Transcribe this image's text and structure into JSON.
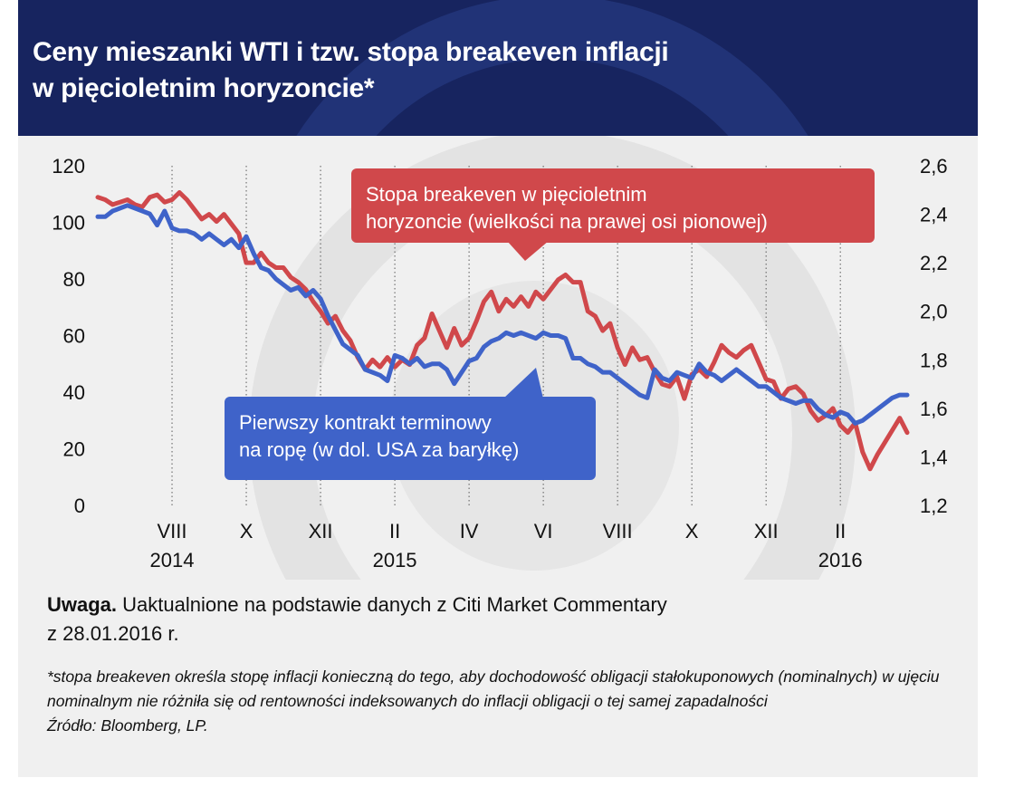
{
  "title_line1": "Ceny mieszanki WTI i tzw. stopa breakeven inflacji",
  "title_line2": "w pięcioletnim horyzoncie*",
  "note_label": "Uwaga.",
  "note_text": "Uaktualnione na podstawie danych z Citi Market Commentary",
  "note_text_2": "z 28.01.2016 r.",
  "footnote": "*stopa breakeven określa stopę inflacji konieczną do tego, aby dochodowość obligacji stałokuponowych (nominalnych) w ujęciu nominalnym nie różniła się od rentowności indeksowanych do inflacji obligacji o tej samej zapadalności",
  "source": "Źródło: Bloomberg, LP.",
  "colors": {
    "header": "#17245f",
    "oil": "#3f63c9",
    "breakeven": "#d0484b",
    "background": "#f0f0f0"
  },
  "chart_data": {
    "type": "line",
    "x_unit": "months since January 2014",
    "x_range": [
      5.0,
      25.8
    ],
    "x_ticks": [
      {
        "x": 7,
        "label": "VIII",
        "year": "2014"
      },
      {
        "x": 9,
        "label": "X",
        "year": ""
      },
      {
        "x": 11,
        "label": "XII",
        "year": ""
      },
      {
        "x": 13,
        "label": "II",
        "year": "2015"
      },
      {
        "x": 15,
        "label": "IV",
        "year": ""
      },
      {
        "x": 17,
        "label": "VI",
        "year": ""
      },
      {
        "x": 19,
        "label": "VIII",
        "year": ""
      },
      {
        "x": 21,
        "label": "X",
        "year": ""
      },
      {
        "x": 23,
        "label": "XII",
        "year": ""
      },
      {
        "x": 25,
        "label": "II",
        "year": "2016"
      }
    ],
    "y_left": {
      "min": 0,
      "max": 120,
      "ticks": [
        "0",
        "20",
        "40",
        "60",
        "80",
        "100",
        "120"
      ]
    },
    "y_right": {
      "min": 1.2,
      "max": 2.6,
      "ticks": [
        "1,2",
        "1,4",
        "1,6",
        "1,8",
        "2,0",
        "2,2",
        "2,4",
        "2,6"
      ]
    },
    "grid": "vertical",
    "series": [
      {
        "name": "Pierwszy kontrakt terminowy na ropę (w dol. USA za baryłkę)",
        "axis": "left",
        "points": [
          [
            5.0,
            102
          ],
          [
            5.2,
            102
          ],
          [
            5.4,
            104
          ],
          [
            5.6,
            105
          ],
          [
            5.8,
            106
          ],
          [
            6.0,
            105
          ],
          [
            6.2,
            104
          ],
          [
            6.4,
            103
          ],
          [
            6.6,
            99
          ],
          [
            6.8,
            104
          ],
          [
            7.0,
            98
          ],
          [
            7.2,
            97
          ],
          [
            7.4,
            97
          ],
          [
            7.6,
            96
          ],
          [
            7.8,
            94
          ],
          [
            8.0,
            96
          ],
          [
            8.2,
            94
          ],
          [
            8.4,
            92
          ],
          [
            8.6,
            94
          ],
          [
            8.8,
            91
          ],
          [
            9.0,
            95
          ],
          [
            9.2,
            89
          ],
          [
            9.4,
            84
          ],
          [
            9.6,
            83
          ],
          [
            9.8,
            80
          ],
          [
            10.0,
            78
          ],
          [
            10.2,
            76
          ],
          [
            10.4,
            77
          ],
          [
            10.6,
            74
          ],
          [
            10.8,
            76
          ],
          [
            11.0,
            73
          ],
          [
            11.2,
            67
          ],
          [
            11.4,
            62
          ],
          [
            11.6,
            57
          ],
          [
            11.8,
            55
          ],
          [
            12.0,
            53
          ],
          [
            12.2,
            48
          ],
          [
            12.4,
            47
          ],
          [
            12.6,
            46
          ],
          [
            12.8,
            44
          ],
          [
            13.0,
            53
          ],
          [
            13.2,
            52
          ],
          [
            13.4,
            50
          ],
          [
            13.6,
            52
          ],
          [
            13.8,
            49
          ],
          [
            14.0,
            50
          ],
          [
            14.2,
            50
          ],
          [
            14.4,
            48
          ],
          [
            14.6,
            43
          ],
          [
            14.8,
            47
          ],
          [
            15.0,
            51
          ],
          [
            15.2,
            52
          ],
          [
            15.4,
            56
          ],
          [
            15.6,
            58
          ],
          [
            15.8,
            59
          ],
          [
            16.0,
            61
          ],
          [
            16.2,
            60
          ],
          [
            16.4,
            61
          ],
          [
            16.6,
            60
          ],
          [
            16.8,
            59
          ],
          [
            17.0,
            61
          ],
          [
            17.2,
            60
          ],
          [
            17.4,
            60
          ],
          [
            17.6,
            59
          ],
          [
            17.8,
            52
          ],
          [
            18.0,
            52
          ],
          [
            18.2,
            50
          ],
          [
            18.4,
            49
          ],
          [
            18.6,
            47
          ],
          [
            18.8,
            47
          ],
          [
            19.0,
            45
          ],
          [
            19.2,
            43
          ],
          [
            19.4,
            41
          ],
          [
            19.6,
            39
          ],
          [
            19.8,
            38
          ],
          [
            20.0,
            48
          ],
          [
            20.2,
            45
          ],
          [
            20.4,
            44
          ],
          [
            20.6,
            47
          ],
          [
            20.8,
            46
          ],
          [
            21.0,
            45
          ],
          [
            21.2,
            50
          ],
          [
            21.4,
            47
          ],
          [
            21.6,
            46
          ],
          [
            21.8,
            44
          ],
          [
            22.0,
            46
          ],
          [
            22.2,
            48
          ],
          [
            22.4,
            46
          ],
          [
            22.6,
            44
          ],
          [
            22.8,
            42
          ],
          [
            23.0,
            42
          ],
          [
            23.2,
            40
          ],
          [
            23.4,
            38
          ],
          [
            23.6,
            37
          ],
          [
            23.8,
            36
          ],
          [
            24.0,
            37
          ],
          [
            24.2,
            37
          ],
          [
            24.4,
            34
          ],
          [
            24.6,
            32
          ],
          [
            24.8,
            31
          ],
          [
            25.0,
            33
          ],
          [
            25.2,
            32
          ],
          [
            25.4,
            29
          ],
          [
            25.6,
            30
          ],
          [
            25.8,
            32
          ],
          [
            26.0,
            34
          ],
          [
            26.2,
            36
          ],
          [
            26.4,
            38
          ],
          [
            26.6,
            39
          ],
          [
            26.8,
            39
          ]
        ]
      },
      {
        "name": "Stopa breakeven w pięcioletnim horyzoncie (wielkości na prawej osi pionowej)",
        "axis": "right",
        "points": [
          [
            5.0,
            2.47
          ],
          [
            5.2,
            2.46
          ],
          [
            5.4,
            2.44
          ],
          [
            5.6,
            2.45
          ],
          [
            5.8,
            2.46
          ],
          [
            6.0,
            2.44
          ],
          [
            6.2,
            2.43
          ],
          [
            6.4,
            2.47
          ],
          [
            6.6,
            2.48
          ],
          [
            6.8,
            2.45
          ],
          [
            7.0,
            2.46
          ],
          [
            7.2,
            2.49
          ],
          [
            7.4,
            2.46
          ],
          [
            7.6,
            2.42
          ],
          [
            7.8,
            2.38
          ],
          [
            8.0,
            2.4
          ],
          [
            8.2,
            2.37
          ],
          [
            8.4,
            2.4
          ],
          [
            8.6,
            2.36
          ],
          [
            8.8,
            2.32
          ],
          [
            9.0,
            2.2
          ],
          [
            9.2,
            2.2
          ],
          [
            9.4,
            2.24
          ],
          [
            9.6,
            2.2
          ],
          [
            9.8,
            2.18
          ],
          [
            10.0,
            2.18
          ],
          [
            10.2,
            2.14
          ],
          [
            10.4,
            2.12
          ],
          [
            10.6,
            2.09
          ],
          [
            10.8,
            2.04
          ],
          [
            11.0,
            2.0
          ],
          [
            11.2,
            1.95
          ],
          [
            11.4,
            1.98
          ],
          [
            11.6,
            1.92
          ],
          [
            11.8,
            1.88
          ],
          [
            12.0,
            1.81
          ],
          [
            12.2,
            1.76
          ],
          [
            12.4,
            1.8
          ],
          [
            12.6,
            1.77
          ],
          [
            12.8,
            1.81
          ],
          [
            13.0,
            1.77
          ],
          [
            13.2,
            1.8
          ],
          [
            13.4,
            1.78
          ],
          [
            13.6,
            1.86
          ],
          [
            13.8,
            1.89
          ],
          [
            14.0,
            1.99
          ],
          [
            14.2,
            1.92
          ],
          [
            14.4,
            1.85
          ],
          [
            14.6,
            1.93
          ],
          [
            14.8,
            1.86
          ],
          [
            15.0,
            1.89
          ],
          [
            15.2,
            1.96
          ],
          [
            15.4,
            2.04
          ],
          [
            15.6,
            2.08
          ],
          [
            15.8,
            2.0
          ],
          [
            16.0,
            2.05
          ],
          [
            16.2,
            2.02
          ],
          [
            16.4,
            2.06
          ],
          [
            16.6,
            2.02
          ],
          [
            16.8,
            2.08
          ],
          [
            17.0,
            2.05
          ],
          [
            17.2,
            2.09
          ],
          [
            17.4,
            2.13
          ],
          [
            17.6,
            2.15
          ],
          [
            17.8,
            2.12
          ],
          [
            18.0,
            2.12
          ],
          [
            18.2,
            2.0
          ],
          [
            18.4,
            1.98
          ],
          [
            18.6,
            1.92
          ],
          [
            18.8,
            1.95
          ],
          [
            19.0,
            1.85
          ],
          [
            19.2,
            1.78
          ],
          [
            19.4,
            1.85
          ],
          [
            19.6,
            1.8
          ],
          [
            19.8,
            1.81
          ],
          [
            20.0,
            1.75
          ],
          [
            20.2,
            1.7
          ],
          [
            20.4,
            1.69
          ],
          [
            20.6,
            1.73
          ],
          [
            20.8,
            1.64
          ],
          [
            21.0,
            1.74
          ],
          [
            21.2,
            1.76
          ],
          [
            21.4,
            1.73
          ],
          [
            21.6,
            1.79
          ],
          [
            21.8,
            1.86
          ],
          [
            22.0,
            1.83
          ],
          [
            22.2,
            1.81
          ],
          [
            22.4,
            1.84
          ],
          [
            22.6,
            1.86
          ],
          [
            22.8,
            1.79
          ],
          [
            23.0,
            1.72
          ],
          [
            23.2,
            1.71
          ],
          [
            23.4,
            1.64
          ],
          [
            23.6,
            1.68
          ],
          [
            23.8,
            1.69
          ],
          [
            24.0,
            1.66
          ],
          [
            24.2,
            1.59
          ],
          [
            24.4,
            1.55
          ],
          [
            24.6,
            1.57
          ],
          [
            24.8,
            1.6
          ],
          [
            25.0,
            1.53
          ],
          [
            25.2,
            1.5
          ],
          [
            25.4,
            1.54
          ],
          [
            25.6,
            1.42
          ],
          [
            25.8,
            1.35
          ],
          [
            26.0,
            1.41
          ],
          [
            26.2,
            1.46
          ],
          [
            26.4,
            1.51
          ],
          [
            26.6,
            1.56
          ],
          [
            26.8,
            1.5
          ]
        ]
      }
    ],
    "callouts": [
      {
        "series": 1,
        "line1": "Stopa breakeven w pięcioletnim",
        "line2": "horyzoncie (wielkości na prawej osi pionowej)"
      },
      {
        "series": 0,
        "line1": "Pierwszy kontrakt terminowy",
        "line2": "na ropę (w dol. USA za baryłkę)"
      }
    ]
  }
}
